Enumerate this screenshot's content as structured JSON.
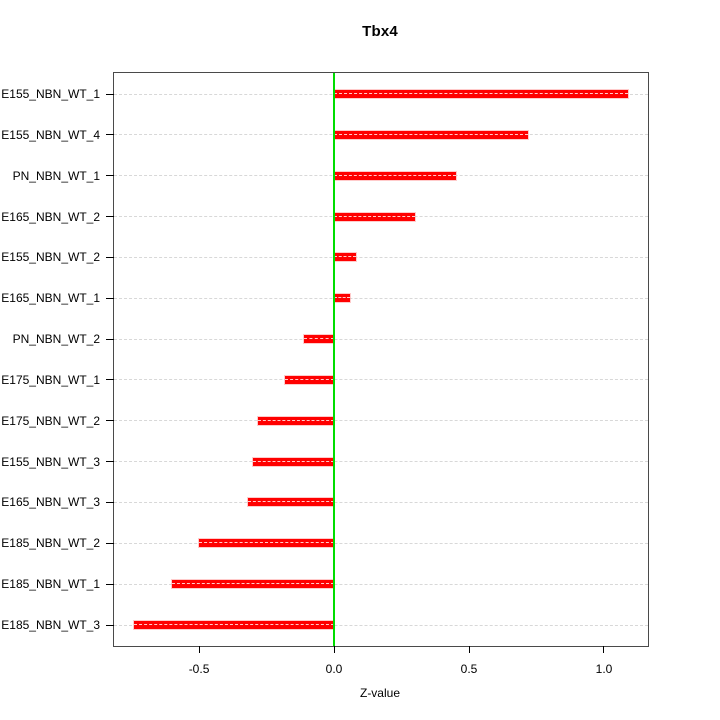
{
  "chart_data": {
    "type": "bar",
    "orientation": "horizontal",
    "title": "Tbx4",
    "xlabel": "Z-value",
    "ylabel": "",
    "categories": [
      "E155_NBN_WT_1",
      "E155_NBN_WT_4",
      "PN_NBN_WT_1",
      "E165_NBN_WT_2",
      "E155_NBN_WT_2",
      "E165_NBN_WT_1",
      "PN_NBN_WT_2",
      "E175_NBN_WT_1",
      "E175_NBN_WT_2",
      "E155_NBN_WT_3",
      "E165_NBN_WT_3",
      "E185_NBN_WT_2",
      "E185_NBN_WT_1",
      "E185_NBN_WT_3"
    ],
    "values": [
      1.09,
      0.72,
      0.45,
      0.3,
      0.08,
      0.06,
      -0.11,
      -0.18,
      -0.28,
      -0.3,
      -0.32,
      -0.5,
      -0.6,
      -0.74
    ],
    "xlim": [
      -0.815,
      1.163
    ],
    "xticks": [
      -0.5,
      0.0,
      0.5,
      1.0
    ],
    "xtick_labels": [
      "-0.5",
      "0.0",
      "0.5",
      "1.0"
    ],
    "baseline": 0,
    "grid": "horizontal dashed guide line across full plot width at each category row",
    "legend": "none",
    "colors": {
      "bar": "#ff0000",
      "zero_line": "#00dd00",
      "row_guide": "#d8d8d8",
      "axis_text": "#000000",
      "plot_border": "#4a4a4a",
      "background": "#ffffff"
    }
  }
}
